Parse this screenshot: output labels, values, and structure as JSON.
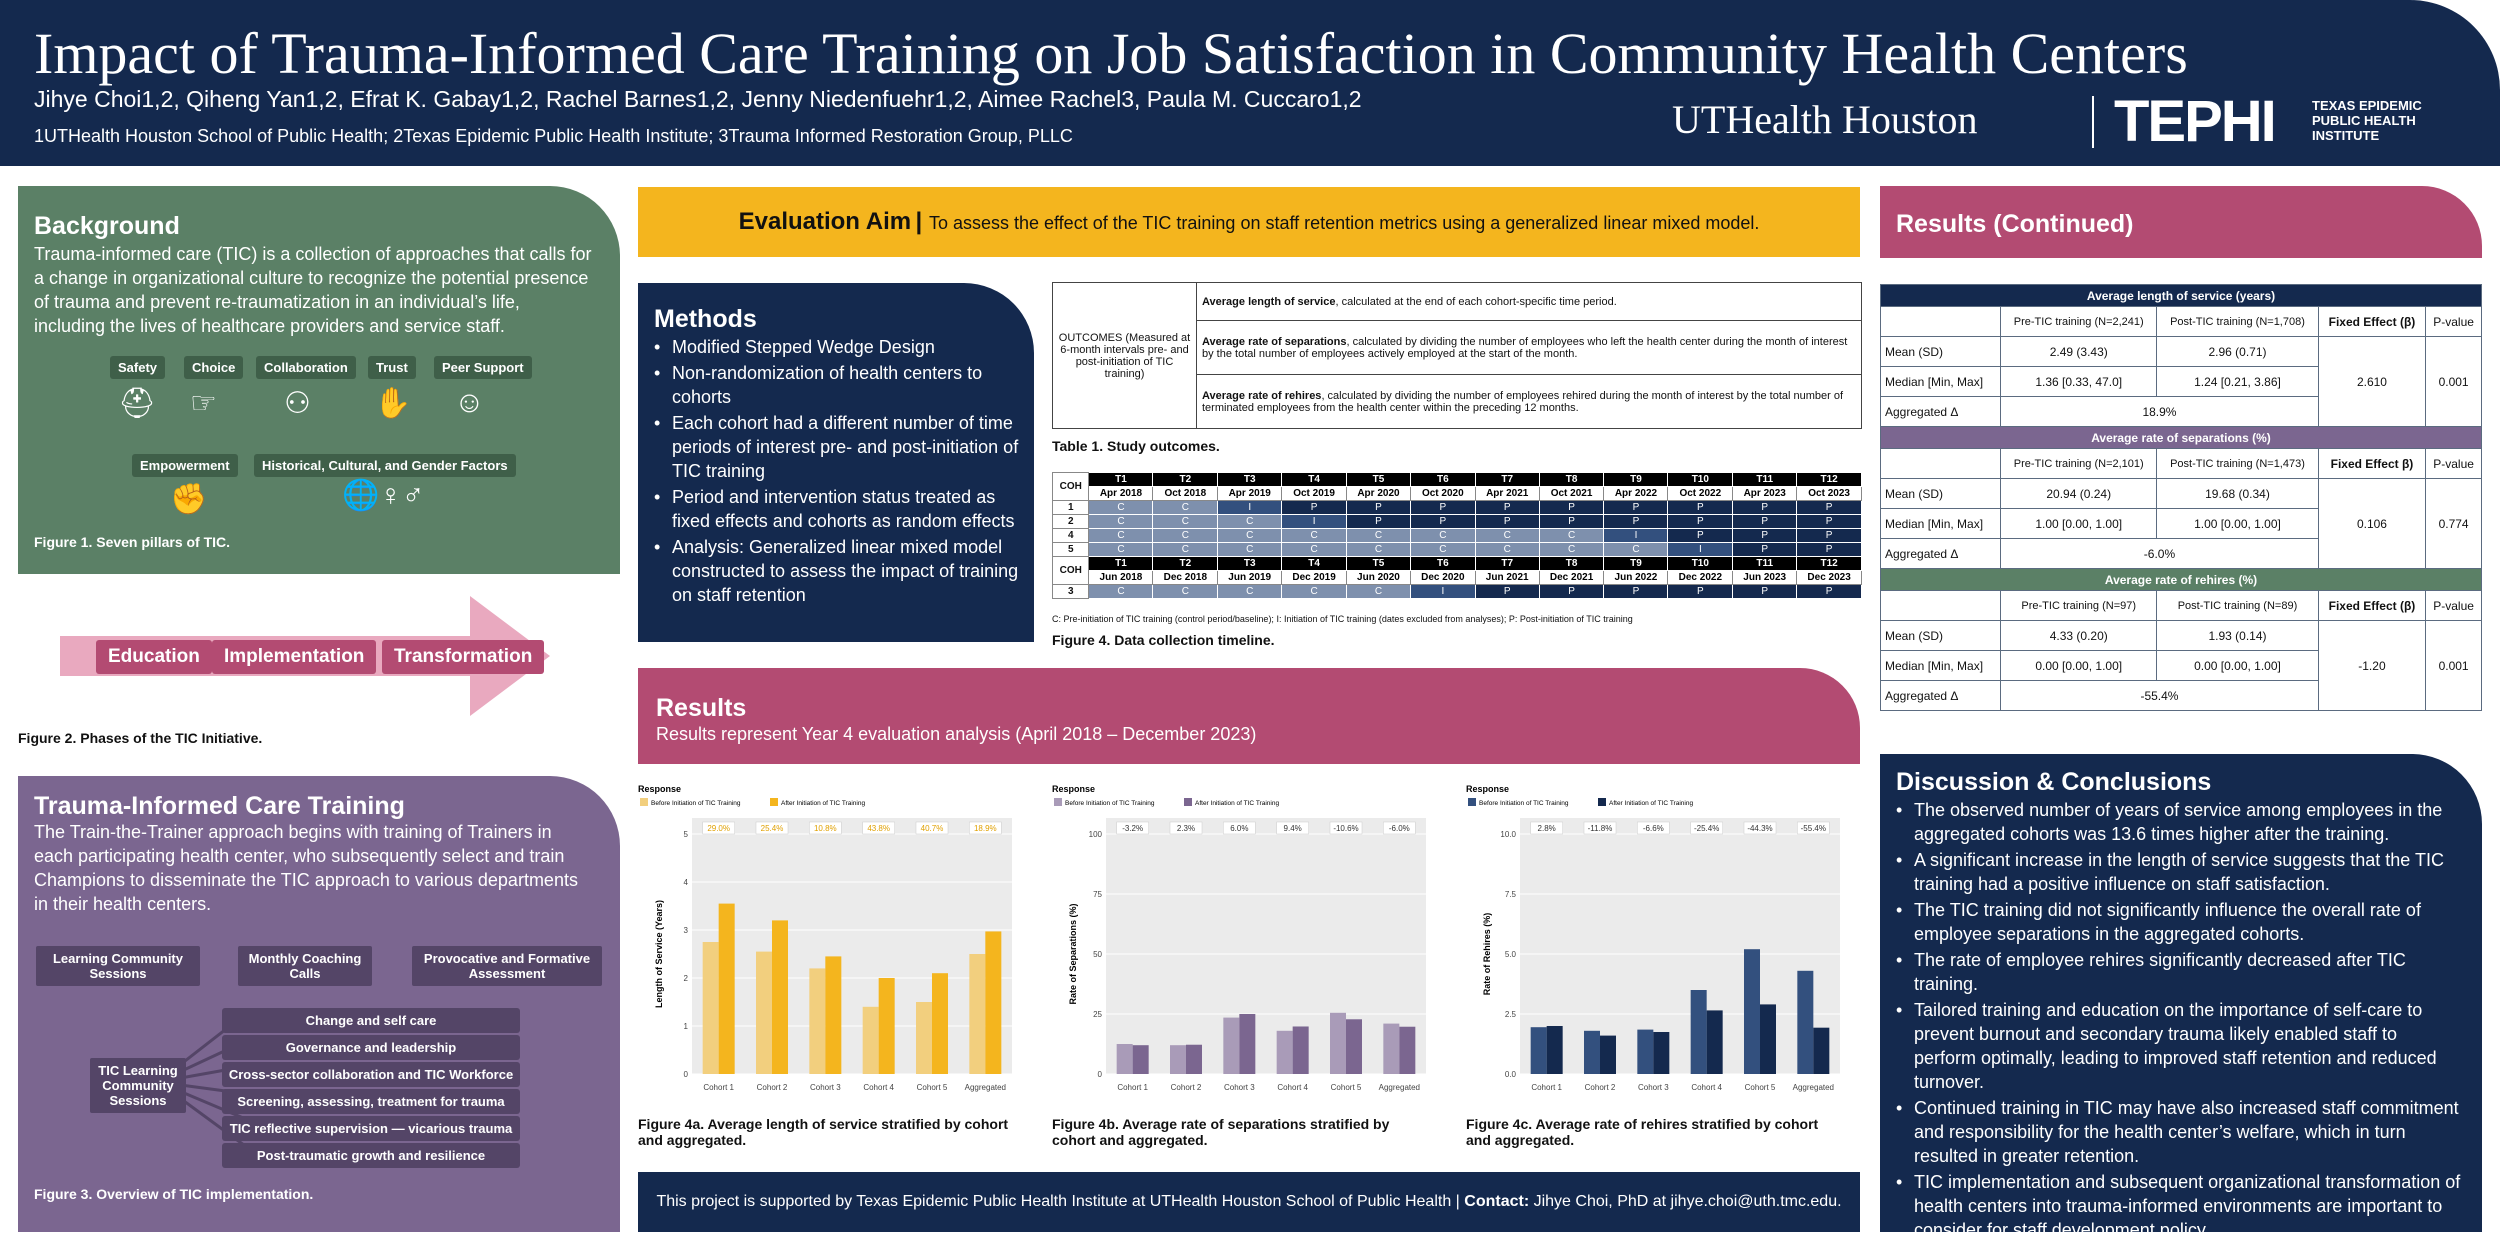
{
  "header": {
    "title": "Impact of Trauma-Informed Care Training on Job Satisfaction in Community Health Centers",
    "authors": "Jihye Choi1,2, Qiheng Yan1,2, Efrat K. Gabay1,2, Rachel Barnes1,2, Jenny Niedenfuehr1,2, Aimee Rachel3, Paula M. Cuccaro1,2",
    "affiliations": "1UTHealth Houston School of Public Health; 2Texas Epidemic Public Health Institute; 3Trauma Informed Restoration Group, PLLC",
    "logo_uth": "UTHealth Houston",
    "logo_tephi": "TEPHI",
    "logo_tephi_sub": "TEXAS EPIDEMIC PUBLIC HEALTH INSTITUTE"
  },
  "background": {
    "heading": "Background",
    "text": "Trauma-informed care (TIC) is a collection of approaches that calls for a change in organizational culture to recognize the potential presence of trauma and prevent re-traumatization in an individual’s life, including the lives of healthcare providers and service staff.",
    "pillars": [
      "Safety",
      "Choice",
      "Collaboration",
      "Trust",
      "Peer Support",
      "Empowerment",
      "Historical, Cultural, and Gender Factors"
    ],
    "fig1": "Figure 1. Seven pillars of TIC."
  },
  "phases": {
    "items": [
      "Education",
      "Implementation",
      "Transformation"
    ],
    "fig2": "Figure 2. Phases of the TIC Initiative."
  },
  "tic_training": {
    "heading": "Trauma-Informed Care Training",
    "text": "The Train-the-Trainer approach begins with training of Trainers in each participating health center, who subsequently select and train Champions to disseminate the TIC approach to various departments in their health centers.",
    "boxes": [
      "Learning Community Sessions",
      "Monthly Coaching Calls",
      "Provocative and Formative Assessment"
    ],
    "center": "TIC Learning Community Sessions",
    "topics": [
      "Change and self care",
      "Governance and leadership",
      "Cross-sector collaboration and TIC Workforce",
      "Screening, assessing, treatment for trauma",
      "TIC reflective supervision — vicarious trauma",
      "Post-traumatic growth and resilience"
    ],
    "fig3": "Figure 3. Overview of TIC implementation."
  },
  "aim": {
    "label": "Evaluation Aim",
    "text": "To assess the effect of the TIC training on staff retention metrics using a generalized linear mixed model."
  },
  "methods": {
    "heading": "Methods",
    "bullets": [
      "Modified Stepped Wedge Design",
      "Non-randomization of health centers to cohorts",
      "Each cohort had a different number of time periods of interest pre- and post-initiation of TIC training",
      "Period and intervention status treated as fixed effects and cohorts as random effects",
      "Analysis: Generalized linear mixed model constructed to assess the impact of training on staff retention"
    ]
  },
  "outcomes": {
    "label": "OUTCOMES (Measured at 6-month intervals pre- and post-initiation of TIC training)",
    "rows": [
      {
        "bold": "Average length of service",
        "rest": ", calculated at the end of each cohort-specific time period."
      },
      {
        "bold": "Average rate of separations",
        "rest": ", calculated by dividing the number of employees who left the health center during the month of interest by the total number of employees actively employed at the start of the month."
      },
      {
        "bold": "Average rate of rehires",
        "rest": ", calculated by dividing the number of employees rehired during the month of interest by the total number of terminated employees from the health center within the preceding 12 months."
      }
    ],
    "caption": "Table 1. Study outcomes."
  },
  "timeline": {
    "coh": "COH",
    "periods": [
      "T1",
      "T2",
      "T3",
      "T4",
      "T5",
      "T6",
      "T7",
      "T8",
      "T9",
      "T10",
      "T11",
      "T12"
    ],
    "dates": [
      "Apr 2018",
      "Oct 2018",
      "Apr 2019",
      "Oct 2019",
      "Apr 2020",
      "Oct 2020",
      "Apr 2021",
      "Oct 2021",
      "Apr 2022",
      "Oct 2022",
      "Apr 2023",
      "Oct 2023"
    ],
    "cohorts": [
      {
        "id": "1",
        "cells": [
          "C",
          "C",
          "I",
          "P",
          "P",
          "P",
          "P",
          "P",
          "P",
          "P",
          "P",
          "P"
        ]
      },
      {
        "id": "2",
        "cells": [
          "C",
          "C",
          "C",
          "I",
          "P",
          "P",
          "P",
          "P",
          "P",
          "P",
          "P",
          "P"
        ]
      },
      {
        "id": "4",
        "cells": [
          "C",
          "C",
          "C",
          "C",
          "C",
          "C",
          "C",
          "C",
          "I",
          "P",
          "P",
          "P"
        ]
      },
      {
        "id": "5",
        "cells": [
          "C",
          "C",
          "C",
          "C",
          "C",
          "C",
          "C",
          "C",
          "C",
          "I",
          "P",
          "P"
        ]
      }
    ],
    "dates2": [
      "Jun 2018",
      "Dec 2018",
      "Jun 2019",
      "Dec 2019",
      "Jun 2020",
      "Dec 2020",
      "Jun 2021",
      "Dec 2021",
      "Jun 2022",
      "Dec 2022",
      "Jun 2023",
      "Dec 2023"
    ],
    "cohort3": {
      "id": "3",
      "cells": [
        "C",
        "C",
        "C",
        "C",
        "C",
        "I",
        "P",
        "P",
        "P",
        "P",
        "P",
        "P"
      ]
    },
    "legend": "C: Pre-initiation of TIC training (control period/baseline); I: Initiation of TIC training (dates excluded from analyses); P: Post-initiation of TIC training",
    "caption": "Figure 4. Data collection timeline."
  },
  "results": {
    "heading": "Results",
    "sub": "Results represent Year 4 evaluation analysis (April 2018 – December 2023)"
  },
  "chart_data": [
    {
      "type": "bar",
      "title": "",
      "legend_title": "Response",
      "legend": [
        "Before Initiation of TIC Training",
        "After Initiation of TIC Training"
      ],
      "ylabel": "Length of Service (Years)",
      "ylim": [
        0,
        5
      ],
      "yticks": [
        "0",
        "1",
        "2",
        "3",
        "4",
        "5"
      ],
      "categories": [
        "Cohort 1",
        "Cohort 2",
        "Cohort 3",
        "Cohort 4",
        "Cohort 5",
        "Aggregated"
      ],
      "series": [
        {
          "name": "Before Initiation of TIC Training",
          "values": [
            2.75,
            2.55,
            2.2,
            1.4,
            1.5,
            2.5
          ]
        },
        {
          "name": "After Initiation of TIC Training",
          "values": [
            3.55,
            3.2,
            2.45,
            2.0,
            2.1,
            2.97
          ]
        }
      ],
      "labels": [
        "29.0%",
        "25.4%",
        "10.8%",
        "43.8%",
        "40.7%",
        "18.9%"
      ],
      "colors": [
        "#f2cf7e",
        "#f4b51e"
      ],
      "caption": "Figure 4a. Average length of service stratified by cohort and aggregated."
    },
    {
      "type": "bar",
      "legend_title": "Response",
      "legend": [
        "Before Initiation of TIC Training",
        "After Initiation of TIC Training"
      ],
      "ylabel": "Rate of Separations (%)",
      "ylim": [
        0,
        100
      ],
      "yticks": [
        "0",
        "25",
        "50",
        "75",
        "100"
      ],
      "categories": [
        "Cohort 1",
        "Cohort 2",
        "Cohort 3",
        "Cohort 4",
        "Cohort 5",
        "Aggregated"
      ],
      "series": [
        {
          "name": "Before Initiation of TIC Training",
          "values": [
            12.5,
            12,
            23.5,
            18,
            25.5,
            21
          ]
        },
        {
          "name": "After Initiation of TIC Training",
          "values": [
            12,
            12.2,
            25,
            19.8,
            22.8,
            19.7
          ]
        }
      ],
      "labels": [
        "-3.2%",
        "2.3%",
        "6.0%",
        "9.4%",
        "-10.6%",
        "-6.0%"
      ],
      "colors": [
        "#a99bb8",
        "#7b6690"
      ],
      "caption": "Figure 4b. Average rate of separations stratified by cohort and aggregated."
    },
    {
      "type": "bar",
      "legend_title": "Response",
      "legend": [
        "Before Initiation of TIC Training",
        "After Initiation of TIC Training"
      ],
      "ylabel": "Rate of Rehires (%)",
      "ylim": [
        0,
        10
      ],
      "yticks": [
        "0.0",
        "2.5",
        "5.0",
        "7.5",
        "10.0"
      ],
      "categories": [
        "Cohort 1",
        "Cohort 2",
        "Cohort 3",
        "Cohort 4",
        "Cohort 5",
        "Aggregated"
      ],
      "series": [
        {
          "name": "Before Initiation of TIC Training",
          "values": [
            1.95,
            1.8,
            1.85,
            3.5,
            5.2,
            4.3
          ]
        },
        {
          "name": "After Initiation of TIC Training",
          "values": [
            2.0,
            1.6,
            1.75,
            2.65,
            2.9,
            1.93
          ]
        }
      ],
      "labels": [
        "2.8%",
        "-11.8%",
        "-6.6%",
        "-25.4%",
        "-44.3%",
        "-55.4%"
      ],
      "colors": [
        "#33507e",
        "#14294e"
      ],
      "caption": "Figure 4c. Average rate of rehires stratified by cohort and aggregated."
    }
  ],
  "footer": {
    "text": "This project is supported by Texas Epidemic Public Health Institute at UTHealth Houston School of Public Health | ",
    "contact_label": "Contact:",
    "contact": " Jihye Choi, PhD at jihye.choi@uth.tmc.edu."
  },
  "results_cont": {
    "heading": "Results (Continued)",
    "tables": [
      {
        "title": "Average length of service (years)",
        "pre": "Pre-TIC training (N=2,241)",
        "post": "Post-TIC training (N=1,708)",
        "fe": "Fixed Effect (β)",
        "pv": "P-value",
        "mean": [
          "2.49 (3.43)",
          "2.96 (0.71)"
        ],
        "median": [
          "1.36 [0.33, 47.0]",
          "1.24 [0.21, 3.86]"
        ],
        "agg": "18.9%",
        "fixed": "2.610",
        "p": "0.001"
      },
      {
        "title": "Average rate of separations (%)",
        "pre": "Pre-TIC training (N=2,101)",
        "post": "Post-TIC training (N=1,473)",
        "fe": "Fixed Effect β)",
        "pv": "P-value",
        "mean": [
          "20.94 (0.24)",
          "19.68 (0.34)"
        ],
        "median": [
          "1.00 [0.00, 1.00]",
          "1.00 [0.00, 1.00]"
        ],
        "agg": "-6.0%",
        "fixed": "0.106",
        "p": "0.774"
      },
      {
        "title": "Average rate of rehires (%)",
        "pre": "Pre-TIC training (N=97)",
        "post": "Post-TIC training (N=89)",
        "fe": "Fixed Effect (β)",
        "pv": "P-value",
        "mean": [
          "4.33 (0.20)",
          "1.93 (0.14)"
        ],
        "median": [
          "0.00 [0.00, 1.00]",
          "0.00 [0.00, 1.00]"
        ],
        "agg": "-55.4%",
        "fixed": "-1.20",
        "p": "0.001"
      }
    ],
    "row_labels": [
      "Mean (SD)",
      "Median [Min, Max]",
      "Aggregated Δ"
    ]
  },
  "discussion": {
    "heading": "Discussion & Conclusions",
    "bullets": [
      "The observed number of years of service among employees in the aggregated cohorts was 13.6 times higher after the training.",
      "A significant increase in the length of service suggests that the TIC training had a positive influence on staff satisfaction.",
      "The TIC training did not significantly influence the overall rate of employee separations in the aggregated cohorts.",
      "The rate of employee rehires significantly decreased after TIC training.",
      "Tailored training and education on the importance of self-care to prevent burnout and secondary trauma likely enabled staff to perform optimally, leading to improved staff retention and reduced turnover.",
      "Continued training in TIC may have also increased staff commitment and responsibility for the health center’s welfare, which in turn resulted in greater retention.",
      "TIC implementation and subsequent organizational transformation of health centers into trauma-informed environments are important to consider for staff development policy."
    ]
  }
}
